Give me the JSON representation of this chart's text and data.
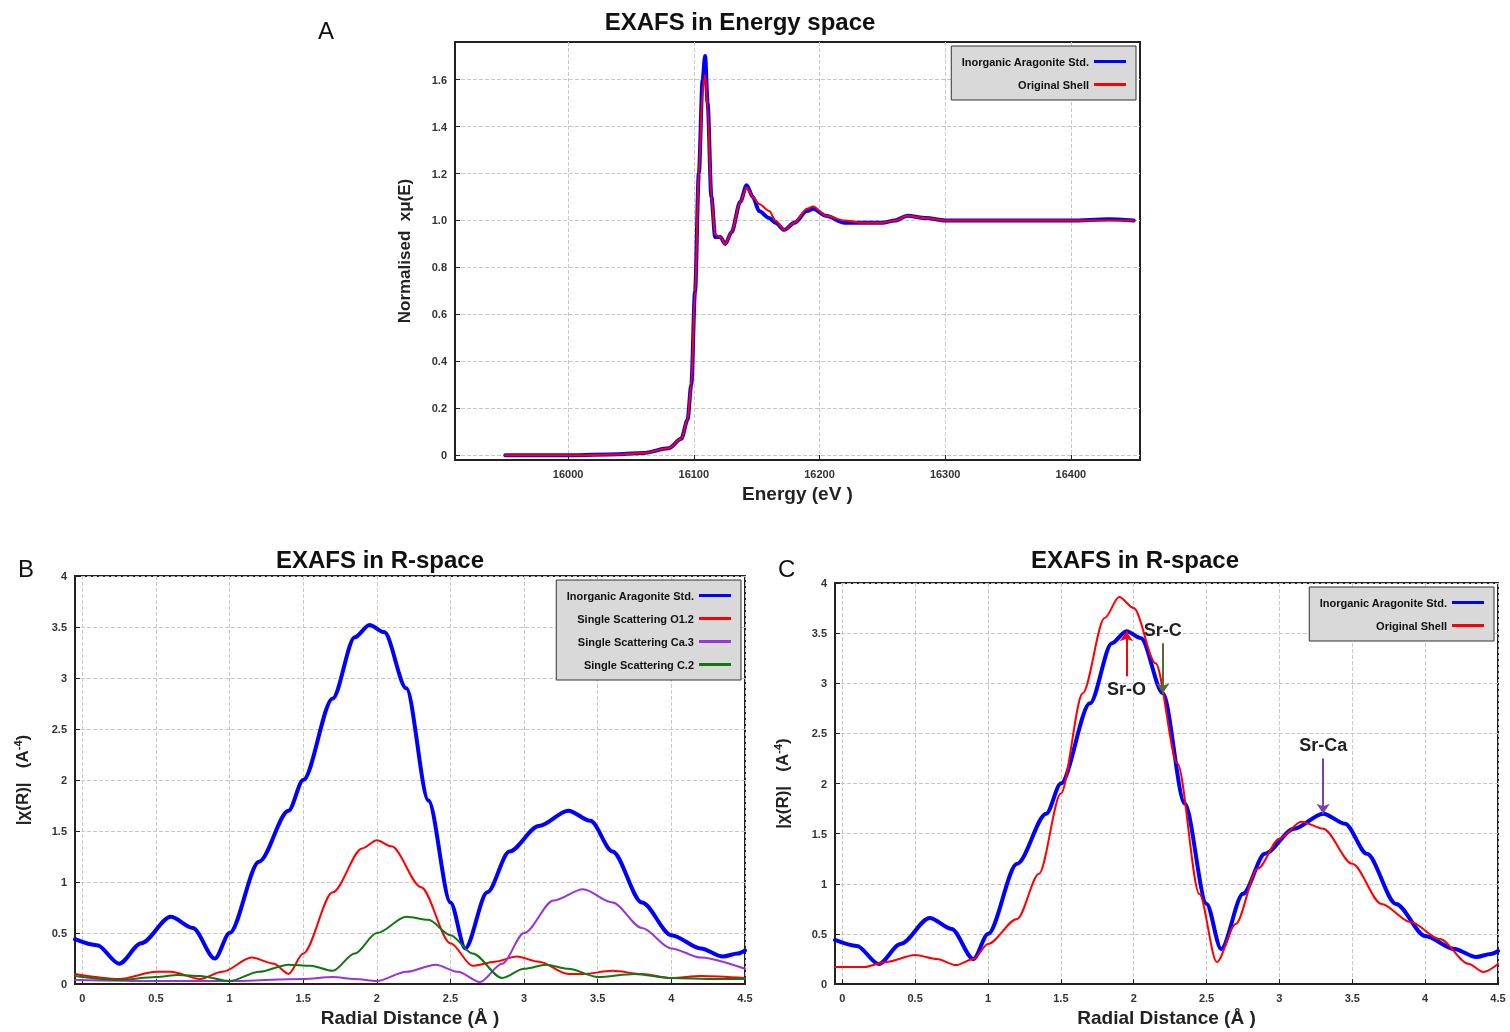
{
  "chart_data": [
    {
      "type": "line",
      "title": "EXAFS in Energy space",
      "xlabel": "Energy (eV )",
      "ylabel": "Normalised  xμ(E)",
      "annotations": [
        "A"
      ],
      "xlim": [
        15910,
        16455
      ],
      "ylim": [
        -0.02,
        1.76
      ],
      "xticks": [
        16000,
        16100,
        16200,
        16300,
        16400
      ],
      "yticks": [
        0,
        0.2,
        0.4,
        0.6,
        0.8,
        {
          "value": 1,
          "label": "1.0"
        },
        1.2,
        1.4,
        1.6
      ],
      "grid": true,
      "legend": "top right",
      "marker": "none",
      "line_style": "solid",
      "series": [
        {
          "name": "Inorganic Aragonite Std.",
          "color": "#0000ff",
          "x": [
            15950,
            16000,
            16040,
            16060,
            16080,
            16090,
            16095,
            16098,
            16101,
            16104,
            16107,
            16109,
            16111,
            16114,
            16117,
            16121,
            16125,
            16130,
            16137,
            16142,
            16147,
            16152,
            16160,
            16165,
            16172,
            16180,
            16190,
            16195,
            16205,
            16220,
            16235,
            16250,
            16260,
            16270,
            16285,
            16300,
            16330,
            16370,
            16400,
            16430,
            16450
          ],
          "values": [
            0,
            0,
            0.005,
            0.01,
            0.03,
            0.07,
            0.15,
            0.3,
            0.7,
            1.2,
            1.6,
            1.7,
            1.5,
            1.1,
            0.93,
            0.93,
            0.9,
            0.95,
            1.08,
            1.15,
            1.1,
            1.04,
            1.01,
            0.99,
            0.96,
            0.99,
            1.04,
            1.05,
            1.02,
            0.99,
            0.99,
            0.99,
            1.0,
            1.02,
            1.01,
            1.0,
            1.0,
            1.0,
            1.0,
            1.005,
            1.0
          ]
        },
        {
          "name": "Original Shell",
          "color": "#ff0000",
          "x": [
            15950,
            16000,
            16040,
            16060,
            16080,
            16090,
            16095,
            16098,
            16101,
            16104,
            16107,
            16109,
            16111,
            16114,
            16117,
            16121,
            16125,
            16130,
            16137,
            16142,
            16147,
            16152,
            16160,
            16165,
            16172,
            16180,
            16190,
            16195,
            16205,
            16220,
            16235,
            16250,
            16260,
            16270,
            16285,
            16300,
            16330,
            16370,
            16400,
            16430,
            16450
          ],
          "values": [
            0,
            0,
            0.003,
            0.01,
            0.03,
            0.07,
            0.15,
            0.3,
            0.7,
            1.2,
            1.55,
            1.62,
            1.48,
            1.1,
            0.94,
            0.93,
            0.9,
            0.95,
            1.08,
            1.14,
            1.1,
            1.07,
            1.04,
            1.0,
            0.96,
            0.99,
            1.05,
            1.06,
            1.02,
            1.0,
            0.99,
            0.99,
            1.0,
            1.02,
            1.01,
            1.0,
            1.0,
            1.0,
            1.0,
            1.0,
            1.0
          ]
        }
      ]
    },
    {
      "type": "line",
      "title": "EXAFS in R-space",
      "xlabel": "Radial Distance (Å )",
      "ylabel": "|χ(R)|   (A$^{-4}$)",
      "annotations": [
        "B"
      ],
      "xlim": [
        -0.05,
        4.5
      ],
      "ylim": [
        0,
        4
      ],
      "xticks": [
        0,
        0.5,
        1,
        1.5,
        2,
        2.5,
        3,
        3.5,
        4,
        4.5
      ],
      "yticks": [
        0,
        0.5,
        1,
        1.5,
        2,
        2.5,
        3,
        3.5,
        4
      ],
      "grid": true,
      "legend": "top right",
      "marker": "none",
      "line_style": "solid",
      "series": [
        {
          "name": "Inorganic Aragonite Std.",
          "color": "#0000ff",
          "x": [
            -0.05,
            0.1,
            0.25,
            0.4,
            0.6,
            0.75,
            0.9,
            1.0,
            1.2,
            1.4,
            1.5,
            1.7,
            1.85,
            1.95,
            2.05,
            2.2,
            2.35,
            2.5,
            2.6,
            2.75,
            2.9,
            3.1,
            3.3,
            3.45,
            3.6,
            3.8,
            4.0,
            4.2,
            4.35,
            4.45,
            4.5
          ],
          "values": [
            0.44,
            0.38,
            0.2,
            0.4,
            0.66,
            0.55,
            0.25,
            0.5,
            1.2,
            1.7,
            2.0,
            2.8,
            3.4,
            3.52,
            3.45,
            2.9,
            1.8,
            0.8,
            0.35,
            0.9,
            1.3,
            1.55,
            1.7,
            1.6,
            1.3,
            0.8,
            0.48,
            0.35,
            0.27,
            0.3,
            0.33
          ]
        },
        {
          "name": "Single Scattering O1.2",
          "color": "#ff0000",
          "x": [
            -0.05,
            0.25,
            0.5,
            0.6,
            0.8,
            0.95,
            1.15,
            1.3,
            1.4,
            1.5,
            1.7,
            1.9,
            2.0,
            2.1,
            2.3,
            2.5,
            2.65,
            2.8,
            2.95,
            3.1,
            3.3,
            3.4,
            3.6,
            3.8,
            4.0,
            4.2,
            4.5
          ],
          "values": [
            0.1,
            0.05,
            0.12,
            0.12,
            0.05,
            0.12,
            0.26,
            0.2,
            0.1,
            0.3,
            0.9,
            1.33,
            1.41,
            1.35,
            0.95,
            0.4,
            0.18,
            0.22,
            0.27,
            0.22,
            0.1,
            0.1,
            0.13,
            0.1,
            0.06,
            0.08,
            0.06
          ]
        },
        {
          "name": "Single Scattering Ca.3",
          "color": "#9933dd",
          "x": [
            -0.05,
            0.5,
            1.0,
            1.5,
            1.7,
            1.85,
            2.0,
            2.2,
            2.4,
            2.55,
            2.7,
            2.85,
            3.0,
            3.2,
            3.4,
            3.6,
            3.8,
            4.0,
            4.2,
            4.5
          ],
          "values": [
            0.04,
            0.03,
            0.03,
            0.05,
            0.07,
            0.05,
            0.03,
            0.12,
            0.19,
            0.12,
            0.02,
            0.2,
            0.5,
            0.82,
            0.93,
            0.8,
            0.55,
            0.35,
            0.26,
            0.15
          ]
        },
        {
          "name": "Single Scattering C.2",
          "color": "#117711",
          "x": [
            -0.05,
            0.25,
            0.5,
            0.65,
            0.8,
            1.0,
            1.2,
            1.4,
            1.55,
            1.7,
            1.85,
            2.0,
            2.2,
            2.35,
            2.5,
            2.65,
            2.85,
            3.0,
            3.15,
            3.3,
            3.5,
            3.75,
            4.0,
            4.3,
            4.5
          ],
          "values": [
            0.08,
            0.04,
            0.07,
            0.09,
            0.08,
            0.03,
            0.12,
            0.19,
            0.18,
            0.13,
            0.3,
            0.5,
            0.66,
            0.63,
            0.48,
            0.3,
            0.06,
            0.15,
            0.19,
            0.15,
            0.07,
            0.1,
            0.06,
            0.05,
            0.05
          ]
        }
      ]
    },
    {
      "type": "line",
      "title": "EXAFS in R-space",
      "xlabel": "Radial Distance (Å )",
      "ylabel": "|χ(R)|   (A$^{-4}$)",
      "annotations": [
        "C",
        {
          "text": "Sr-O",
          "x": 1.95,
          "y": 3.52
        },
        {
          "text": "Sr-C",
          "x": 2.2,
          "y": 2.9
        },
        {
          "text": "Sr-Ca",
          "x": 3.3,
          "y": 1.7
        }
      ],
      "xlim": [
        -0.05,
        4.5
      ],
      "ylim": [
        0,
        4
      ],
      "xticks": [
        0,
        0.5,
        1,
        1.5,
        2,
        2.5,
        3,
        3.5,
        4,
        4.5
      ],
      "yticks": [
        0,
        0.5,
        1,
        1.5,
        2,
        2.5,
        3,
        3.5,
        4
      ],
      "grid": true,
      "legend": "top right",
      "marker": "none",
      "line_style": "solid",
      "series": [
        {
          "name": "Inorganic Aragonite Std.",
          "color": "#0000ff",
          "x": [
            -0.05,
            0.1,
            0.25,
            0.4,
            0.6,
            0.75,
            0.9,
            1.0,
            1.2,
            1.4,
            1.5,
            1.7,
            1.85,
            1.95,
            2.05,
            2.2,
            2.35,
            2.5,
            2.6,
            2.75,
            2.9,
            3.1,
            3.3,
            3.45,
            3.6,
            3.8,
            4.0,
            4.2,
            4.35,
            4.45,
            4.5
          ],
          "values": [
            0.44,
            0.38,
            0.2,
            0.4,
            0.66,
            0.55,
            0.25,
            0.5,
            1.2,
            1.7,
            2.0,
            2.8,
            3.4,
            3.52,
            3.45,
            2.9,
            1.8,
            0.8,
            0.35,
            0.9,
            1.3,
            1.55,
            1.7,
            1.6,
            1.3,
            0.8,
            0.48,
            0.35,
            0.27,
            0.3,
            0.33
          ]
        },
        {
          "name": "Original Shell",
          "color": "#ff0000",
          "x": [
            -0.05,
            0.15,
            0.3,
            0.5,
            0.65,
            0.78,
            0.9,
            1.0,
            1.2,
            1.35,
            1.5,
            1.65,
            1.8,
            1.9,
            2.0,
            2.15,
            2.3,
            2.45,
            2.57,
            2.7,
            2.85,
            3.0,
            3.15,
            3.3,
            3.5,
            3.7,
            3.9,
            4.1,
            4.3,
            4.4,
            4.5
          ],
          "values": [
            0.17,
            0.17,
            0.22,
            0.29,
            0.25,
            0.19,
            0.25,
            0.4,
            0.65,
            1.1,
            1.9,
            2.9,
            3.65,
            3.86,
            3.75,
            3.2,
            2.2,
            0.9,
            0.22,
            0.6,
            1.15,
            1.45,
            1.62,
            1.55,
            1.2,
            0.8,
            0.62,
            0.45,
            0.2,
            0.12,
            0.2
          ]
        }
      ]
    }
  ]
}
